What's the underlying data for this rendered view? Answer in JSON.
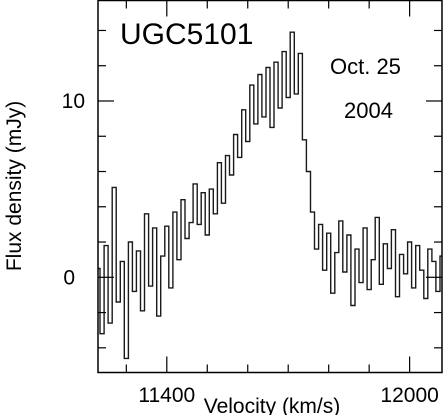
{
  "chart_data": {
    "type": "line",
    "title": "UGC5101",
    "annotation_lines": [
      "Oct. 25",
      "2004"
    ],
    "xlabel": "Velocity (km/s)",
    "ylabel": "Flux density (mJy)",
    "xlim": [
      11230,
      12080
    ],
    "ylim": [
      -5.4,
      15.7
    ],
    "x_ticks": [
      11400,
      12000
    ],
    "x_tick_labels": [
      "11400",
      "12000"
    ],
    "y_ticks": [
      0,
      10
    ],
    "y_tick_labels": [
      "0",
      "10"
    ],
    "grid": false,
    "line_style": "histogram-step",
    "series": [
      {
        "color": "#1a1a1a",
        "x": [
          11230,
          11240,
          11250,
          11260,
          11270,
          11280,
          11290,
          11300,
          11310,
          11320,
          11330,
          11340,
          11350,
          11360,
          11370,
          11380,
          11390,
          11400,
          11410,
          11420,
          11430,
          11440,
          11450,
          11460,
          11470,
          11480,
          11490,
          11500,
          11510,
          11520,
          11530,
          11540,
          11550,
          11560,
          11570,
          11580,
          11590,
          11600,
          11610,
          11620,
          11630,
          11640,
          11650,
          11660,
          11670,
          11680,
          11690,
          11700,
          11710,
          11720,
          11730,
          11740,
          11750,
          11760,
          11770,
          11780,
          11790,
          11800,
          11810,
          11820,
          11830,
          11840,
          11850,
          11860,
          11870,
          11880,
          11890,
          11900,
          11910,
          11920,
          11930,
          11940,
          11950,
          11960,
          11970,
          11980,
          11990,
          12000,
          12010,
          12020,
          12030,
          12040,
          12050,
          12060,
          12070,
          12080
        ],
        "values": [
          0.5,
          -3.2,
          1.8,
          -2.6,
          5.1,
          -1.4,
          0.9,
          -4.6,
          2.0,
          -0.8,
          1.5,
          -1.9,
          3.6,
          -0.5,
          2.8,
          -2.2,
          1.2,
          2.9,
          -0.6,
          3.7,
          1.0,
          4.4,
          2.2,
          3.1,
          5.3,
          3.0,
          4.8,
          2.4,
          5.0,
          3.6,
          6.5,
          4.2,
          6.9,
          5.8,
          8.1,
          6.8,
          9.5,
          7.7,
          10.9,
          8.7,
          11.5,
          9.1,
          11.9,
          8.5,
          12.2,
          9.6,
          12.8,
          10.2,
          13.9,
          10.4,
          12.7,
          7.8,
          6.0,
          3.7,
          1.6,
          3.0,
          0.4,
          2.5,
          -0.9,
          1.4,
          3.2,
          0.3,
          2.4,
          -1.6,
          1.6,
          -0.3,
          2.8,
          -0.7,
          1.0,
          3.4,
          -0.4,
          1.9,
          0.5,
          2.7,
          -1.1,
          1.3,
          0.2,
          2.0,
          -0.6,
          1.8,
          0.4,
          -1.2,
          1.6,
          0.9,
          -0.8,
          1.2
        ]
      }
    ]
  }
}
